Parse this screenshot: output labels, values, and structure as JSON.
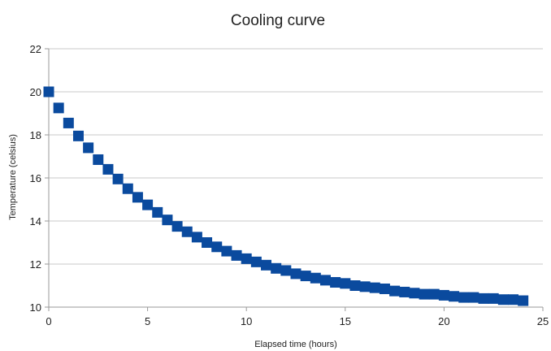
{
  "chart_data": {
    "type": "scatter",
    "title": "Cooling curve",
    "xlabel": "Elapsed time (hours)",
    "ylabel": "Temperature (celsius)",
    "xlim": [
      0,
      25
    ],
    "ylim": [
      10,
      22
    ],
    "xticks": [
      0,
      5,
      10,
      15,
      20,
      25
    ],
    "yticks": [
      10,
      12,
      14,
      16,
      18,
      20,
      22
    ],
    "grid": "horizontal",
    "legend": "none",
    "marker": "square",
    "colors": {
      "series": "#0a4a9e",
      "grid": "#c8c8c8",
      "axis": "#9a9a9a"
    },
    "series": [
      {
        "x": [
          0,
          0.5,
          1,
          1.5,
          2,
          2.5,
          3,
          3.5,
          4,
          4.5,
          5,
          5.5,
          6,
          6.5,
          7,
          7.5,
          8,
          8.5,
          9,
          9.5,
          10,
          10.5,
          11,
          11.5,
          12,
          12.5,
          13,
          13.5,
          14,
          14.5,
          15,
          15.5,
          16,
          16.5,
          17,
          17.5,
          18,
          18.5,
          19,
          19.5,
          20,
          20.5,
          21,
          21.5,
          22,
          22.5,
          23,
          23.5,
          24
        ],
        "y": [
          20.0,
          19.25,
          18.55,
          17.95,
          17.4,
          16.85,
          16.4,
          15.95,
          15.5,
          15.1,
          14.75,
          14.4,
          14.05,
          13.75,
          13.5,
          13.25,
          13.0,
          12.8,
          12.6,
          12.4,
          12.25,
          12.1,
          11.95,
          11.8,
          11.7,
          11.55,
          11.45,
          11.35,
          11.25,
          11.15,
          11.1,
          11.0,
          10.95,
          10.9,
          10.85,
          10.75,
          10.7,
          10.65,
          10.6,
          10.6,
          10.55,
          10.5,
          10.45,
          10.45,
          10.4,
          10.4,
          10.35,
          10.35,
          10.3
        ]
      }
    ]
  }
}
